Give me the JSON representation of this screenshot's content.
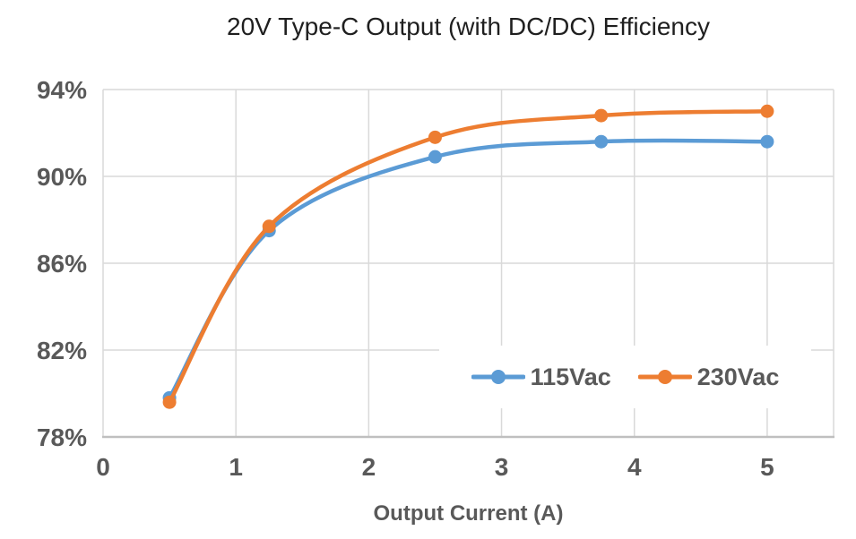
{
  "chart_data": {
    "type": "line",
    "title": "20V Type-C Output (with DC/DC) Efficiency",
    "xlabel": "Output Current (A)",
    "ylabel": "",
    "xlim": [
      0,
      5.5
    ],
    "ylim": [
      78,
      94
    ],
    "grid": true,
    "legend_position": "inside-bottom-right",
    "x_ticks": [
      {
        "v": 0,
        "label": "0"
      },
      {
        "v": 1,
        "label": "1"
      },
      {
        "v": 2,
        "label": "2"
      },
      {
        "v": 3,
        "label": "3"
      },
      {
        "v": 4,
        "label": "4"
      },
      {
        "v": 5,
        "label": "5"
      }
    ],
    "y_ticks": [
      {
        "v": 78,
        "label": "78%"
      },
      {
        "v": 82,
        "label": "82%"
      },
      {
        "v": 86,
        "label": "86%"
      },
      {
        "v": 90,
        "label": "90%"
      },
      {
        "v": 94,
        "label": "94%"
      }
    ],
    "colors": {
      "grid": "#D9D9D9",
      "axis": "#BFBFBF",
      "tick_label": "#595959",
      "title": "#1F1F1F"
    },
    "series": [
      {
        "name": "115Vac",
        "color": "#5B9BD5",
        "marker": "circle",
        "smooth": true,
        "x": [
          0.5,
          1.25,
          2.5,
          3.75,
          5
        ],
        "y": [
          79.8,
          87.5,
          90.9,
          91.6,
          91.6
        ]
      },
      {
        "name": "230Vac",
        "color": "#ED7D31",
        "marker": "circle",
        "smooth": true,
        "x": [
          0.5,
          1.25,
          2.5,
          3.75,
          5
        ],
        "y": [
          79.6,
          87.7,
          91.8,
          92.8,
          93.0
        ]
      }
    ]
  }
}
